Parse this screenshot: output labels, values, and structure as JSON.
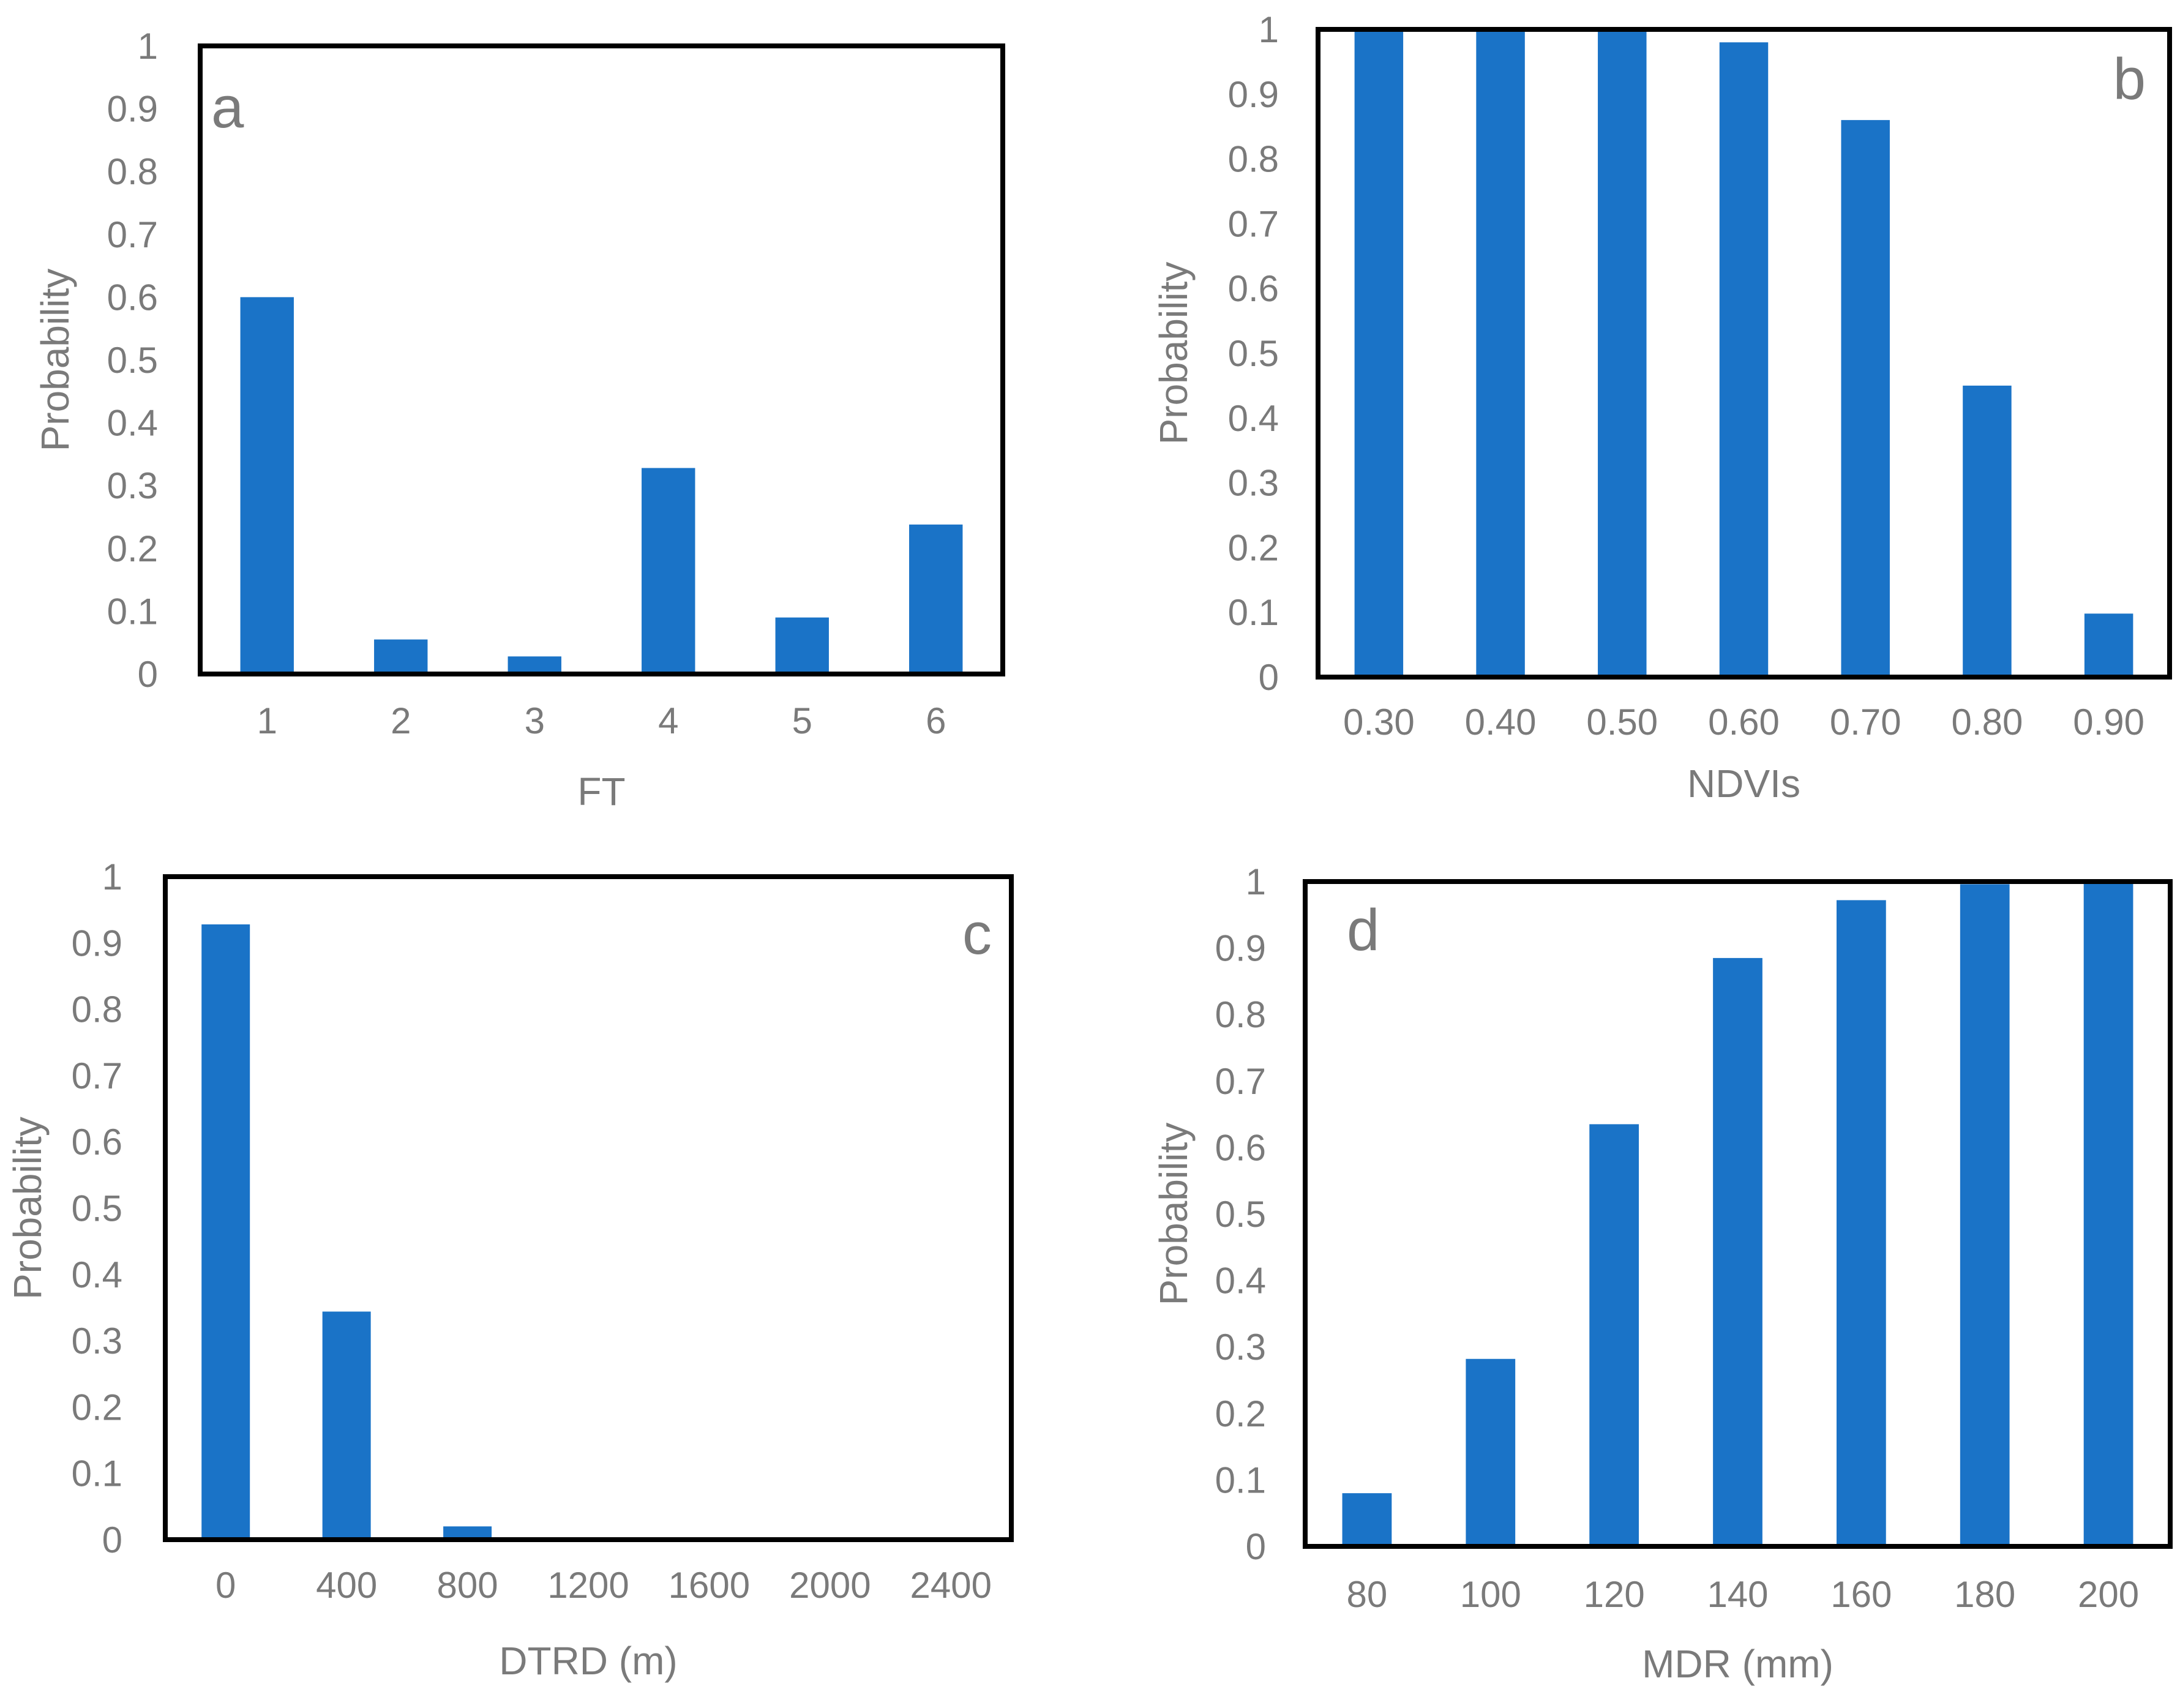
{
  "figure": {
    "bar_color": "#1a73c7",
    "text_color": "#7a7a7a",
    "frame_color": "#000000"
  },
  "chart_data": [
    {
      "type": "bar",
      "panel_label": "a",
      "xlabel": "FT",
      "ylabel": "Probability",
      "categories": [
        "1",
        "2",
        "3",
        "4",
        "5",
        "6"
      ],
      "values": [
        0.6,
        0.055,
        0.028,
        0.328,
        0.09,
        0.238
      ],
      "ylim": [
        0,
        1
      ],
      "yticks": [
        "0",
        "0.1",
        "0.2",
        "0.3",
        "0.4",
        "0.5",
        "0.6",
        "0.7",
        "0.8",
        "0.9",
        "1"
      ],
      "grid": false,
      "label_position": "top-left"
    },
    {
      "type": "bar",
      "panel_label": "b",
      "xlabel": "NDVIs",
      "ylabel": "Probability",
      "categories": [
        "0.30",
        "0.40",
        "0.50",
        "0.60",
        "0.70",
        "0.80",
        "0.90"
      ],
      "values": [
        1.0,
        1.0,
        0.998,
        0.98,
        0.86,
        0.45,
        0.098
      ],
      "ylim": [
        0,
        1
      ],
      "yticks": [
        "0",
        "0.1",
        "0.2",
        "0.3",
        "0.4",
        "0.5",
        "0.6",
        "0.7",
        "0.8",
        "0.9",
        "1"
      ],
      "grid": false,
      "label_position": "top-right"
    },
    {
      "type": "bar",
      "panel_label": "c",
      "xlabel": "DTRD (m)",
      "ylabel": "Probability",
      "categories": [
        "0",
        "400",
        "800",
        "1200",
        "1600",
        "2000",
        "2400"
      ],
      "values": [
        0.928,
        0.344,
        0.02,
        0,
        0,
        0,
        0
      ],
      "ylim": [
        0,
        1
      ],
      "yticks": [
        "0",
        "0.1",
        "0.2",
        "0.3",
        "0.4",
        "0.5",
        "0.6",
        "0.7",
        "0.8",
        "0.9",
        "1"
      ],
      "grid": false,
      "label_position": "top-right"
    },
    {
      "type": "bar",
      "panel_label": "d",
      "xlabel": "MDR (mm)",
      "ylabel": "Probability",
      "categories": [
        "80",
        "100",
        "120",
        "140",
        "160",
        "180",
        "200"
      ],
      "values": [
        0.08,
        0.282,
        0.635,
        0.885,
        0.972,
        0.996,
        1.0
      ],
      "ylim": [
        0,
        1
      ],
      "yticks": [
        "0",
        "0.1",
        "0.2",
        "0.3",
        "0.4",
        "0.5",
        "0.6",
        "0.7",
        "0.8",
        "0.9",
        "1"
      ],
      "grid": false,
      "label_position": "top-left"
    }
  ]
}
